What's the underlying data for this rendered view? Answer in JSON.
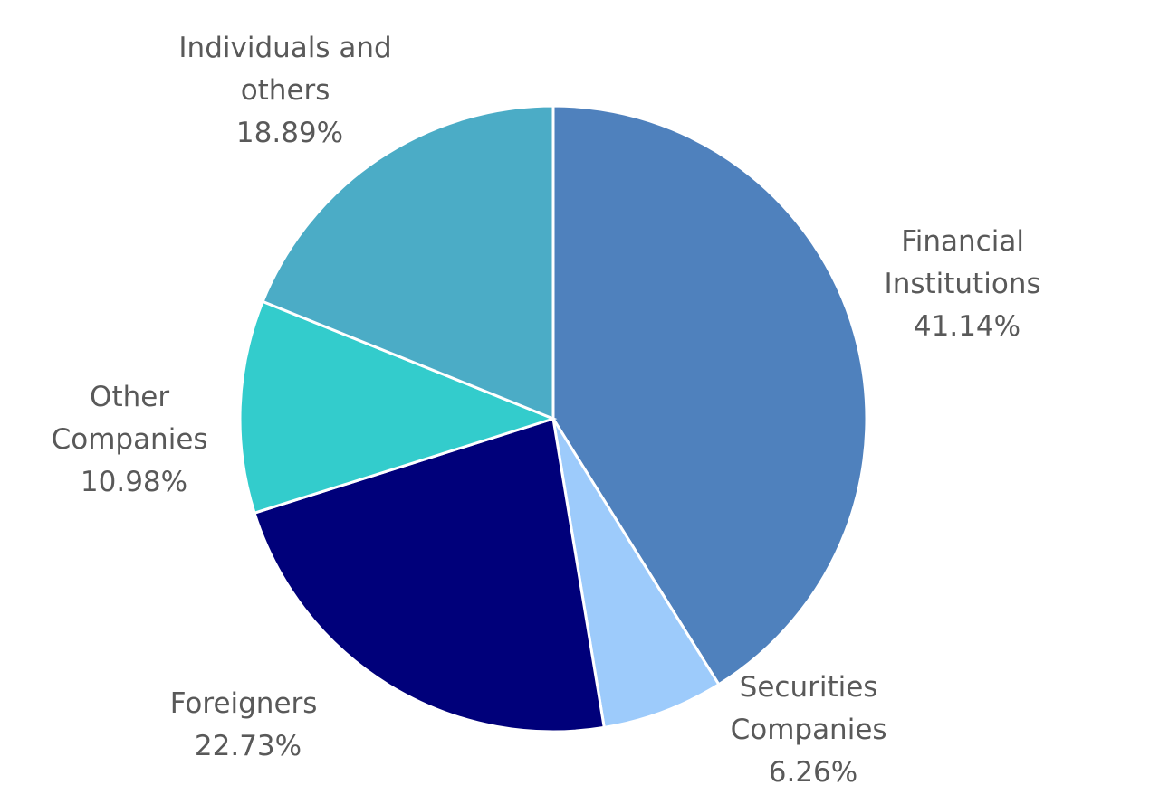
{
  "chart_data": {
    "type": "pie",
    "title": "",
    "slices": [
      {
        "label_lines": [
          "Financial",
          "Institutions"
        ],
        "pct_label": "41.14%",
        "value": 41.14,
        "color": "#4f81bd"
      },
      {
        "label_lines": [
          "Securities",
          "Companies"
        ],
        "pct_label": "6.26%",
        "value": 6.26,
        "color": "#9dcbfb"
      },
      {
        "label_lines": [
          "Foreigners"
        ],
        "pct_label": "22.73%",
        "value": 22.73,
        "color": "#00007a"
      },
      {
        "label_lines": [
          "Other",
          "Companies"
        ],
        "pct_label": "10.98%",
        "value": 10.98,
        "color": "#33cccc"
      },
      {
        "label_lines": [
          "Individuals and",
          "others"
        ],
        "pct_label": "18.89%",
        "value": 18.89,
        "color": "#4bacc6"
      }
    ],
    "start": "12 o'clock",
    "direction": "clockwise",
    "legend": "none",
    "data_labels": "outside"
  }
}
